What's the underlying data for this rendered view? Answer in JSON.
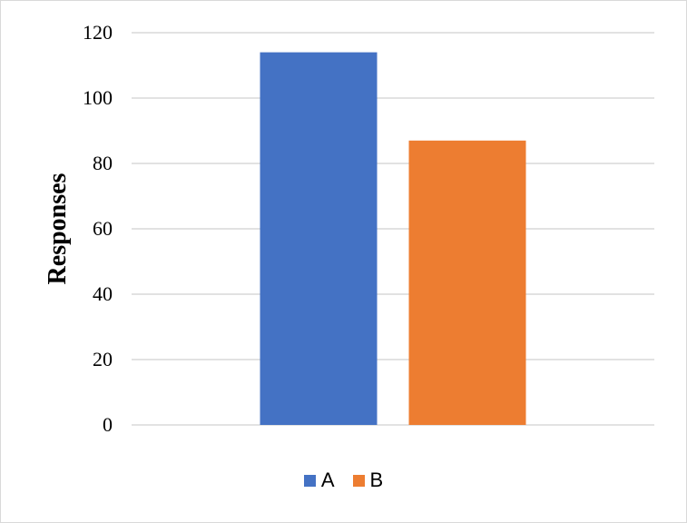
{
  "chart_data": {
    "type": "bar",
    "categories": [
      "A",
      "B"
    ],
    "values": [
      114,
      87
    ],
    "colors": [
      "#4472C4",
      "#ED7D31"
    ],
    "ylabel": "Responses",
    "xlabel": "",
    "ylim": [
      0,
      120
    ],
    "yticks": [
      0,
      20,
      40,
      60,
      80,
      100,
      120
    ],
    "grid": true,
    "legend_position": "bottom",
    "legend": [
      {
        "label": "A",
        "color": "#4472C4"
      },
      {
        "label": "B",
        "color": "#ED7D31"
      }
    ]
  }
}
